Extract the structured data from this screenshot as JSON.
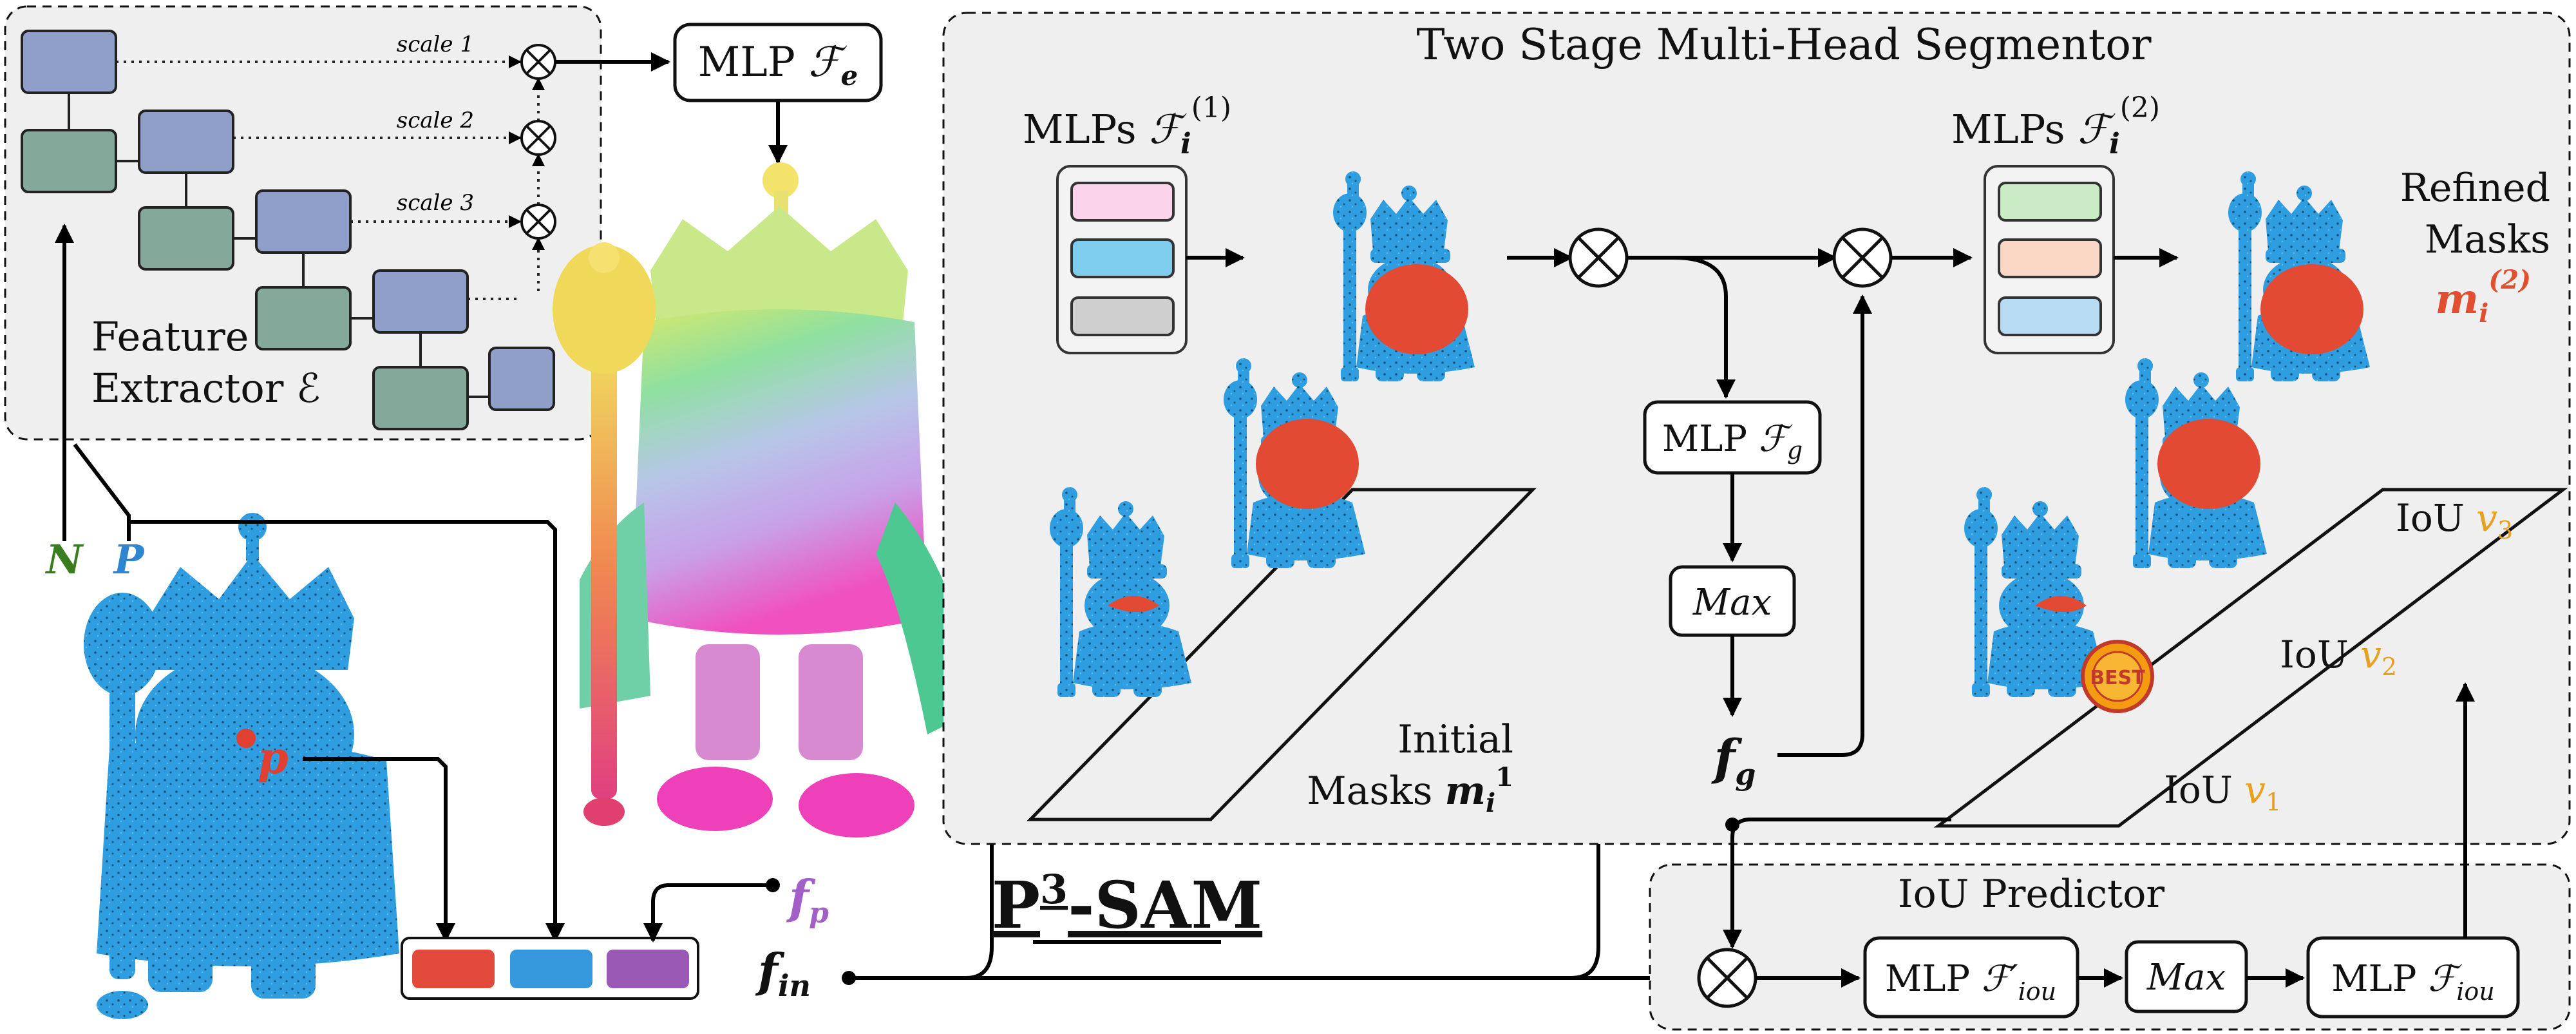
{
  "feature_extractor": {
    "label_line1": "Feature",
    "label_line2": "Extractor",
    "symbol": "ℰ",
    "scales": [
      "scale 1",
      "scale 2",
      "scale 3"
    ]
  },
  "mlp_fe": {
    "text": "MLP ",
    "sym": "ℱ",
    "sub": "e"
  },
  "inputs": {
    "N": "N",
    "P": "P",
    "p": "p"
  },
  "fp": {
    "sym": "f",
    "sub": "p"
  },
  "fin": {
    "sym": "f",
    "sub": "in"
  },
  "fg": {
    "sym": "f",
    "sub": "g"
  },
  "title": {
    "main": "P",
    "sup": "3",
    "rest": "-SAM"
  },
  "segmentor": {
    "title": "Two Stage Multi-Head Segmentor"
  },
  "mlps1": {
    "text": "MLPs ",
    "sym": "ℱ",
    "sub": "i",
    "sup": "(1)"
  },
  "mlps2": {
    "text": "MLPs ",
    "sym": "ℱ",
    "sub": "i",
    "sup": "(2)"
  },
  "mlp_fg": {
    "text": "MLP ",
    "sym": "ℱ",
    "sub": "g"
  },
  "max_labels": {
    "segmentor": "Max",
    "iou": "Max"
  },
  "initial_masks": {
    "line1": "Initial",
    "line2": "Masks ",
    "sym": "m",
    "sub": "i",
    "sup": "1"
  },
  "refined_masks": {
    "line1": "Refined",
    "line2": "Masks",
    "sym": "m",
    "sub": "i",
    "sup": "(2)"
  },
  "iou_labels": [
    {
      "text": "IoU ",
      "sym": "v",
      "sub": "1"
    },
    {
      "text": "IoU ",
      "sym": "v",
      "sub": "2"
    },
    {
      "text": "IoU ",
      "sym": "v",
      "sub": "3"
    }
  ],
  "best_badge": "BEST",
  "iou_predictor": {
    "title": "IoU Predictor",
    "mlp1": {
      "text": "MLP ",
      "sym": "ℱ",
      "sub": "iou",
      "prime": "′"
    },
    "mlp2": {
      "text": "MLP ",
      "sym": "ℱ",
      "sub": "iou"
    }
  },
  "colors": {
    "point_cloud_blue": "#2f9ee0",
    "mask_red": "#e24a33",
    "n_label": "#3a7d1e",
    "p_label": "#2f86d0",
    "p_point": "#e04030",
    "fp_label": "#a25fc8",
    "iou_value": "#e8a020",
    "refined_label": "#e05030",
    "concat_red": "#e24a3c",
    "concat_blue": "#3598dc",
    "concat_purple": "#9b59b6",
    "head1_pink": "#fbd3ea",
    "head1_blue": "#7fcdee",
    "head1_gray": "#cfcfcf",
    "head2_green": "#c9ecc5",
    "head2_peach": "#fbd7c6",
    "head2_blue": "#b7dcf3",
    "panel_gray": "#efefef",
    "fe_blue": "#8f9fc9",
    "fe_green": "#84a89a"
  }
}
